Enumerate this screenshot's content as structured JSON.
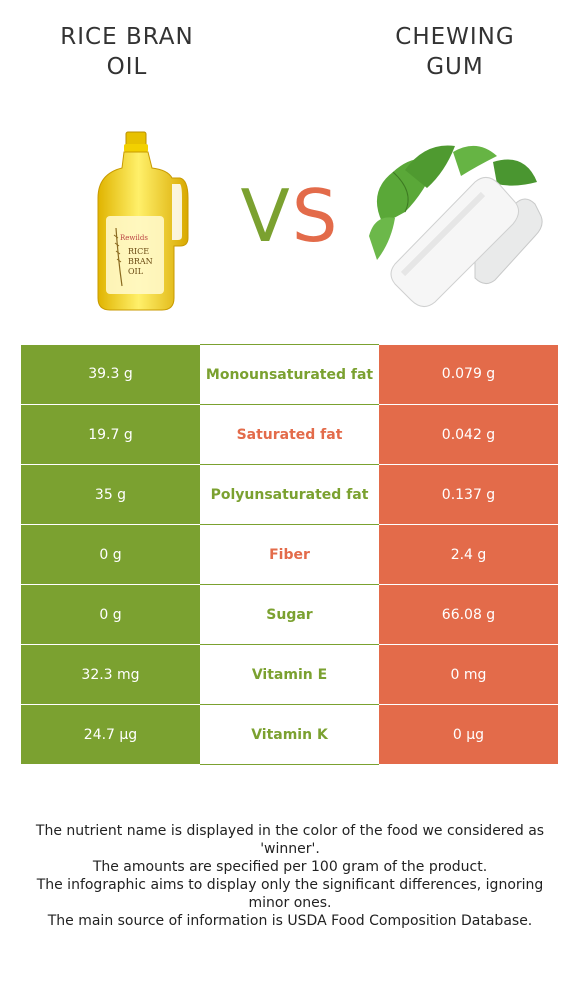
{
  "left_food": {
    "title_line1": "RICE BRAN",
    "title_line2": "OIL",
    "label_brand": "Rewilds",
    "label_text": [
      "RICE",
      "BRAN",
      "OIL"
    ]
  },
  "right_food": {
    "title_line1": "CHEWING",
    "title_line2": "GUM"
  },
  "vs": {
    "v": "V",
    "s": "S"
  },
  "colors": {
    "left": "#7ba130",
    "right": "#e36b4a"
  },
  "rows": [
    {
      "left": "39.3 g",
      "name": "Monounsaturated fat",
      "right": "0.079 g",
      "winner": "left"
    },
    {
      "left": "19.7 g",
      "name": "Saturated fat",
      "right": "0.042 g",
      "winner": "right"
    },
    {
      "left": "35 g",
      "name": "Polyunsaturated fat",
      "right": "0.137 g",
      "winner": "left"
    },
    {
      "left": "0 g",
      "name": "Fiber",
      "right": "2.4 g",
      "winner": "right"
    },
    {
      "left": "0 g",
      "name": "Sugar",
      "right": "66.08 g",
      "winner": "left"
    },
    {
      "left": "32.3 mg",
      "name": "Vitamin E",
      "right": "0 mg",
      "winner": "left"
    },
    {
      "left": "24.7 µg",
      "name": "Vitamin K",
      "right": "0 µg",
      "winner": "left"
    }
  ],
  "footer": [
    "The nutrient name is displayed in the color of the food we considered as 'winner'.",
    "The amounts are specified per 100 gram of the product.",
    "The infographic aims to display only the significant differences, ignoring minor ones.",
    "The main source of information is USDA Food Composition Database."
  ]
}
